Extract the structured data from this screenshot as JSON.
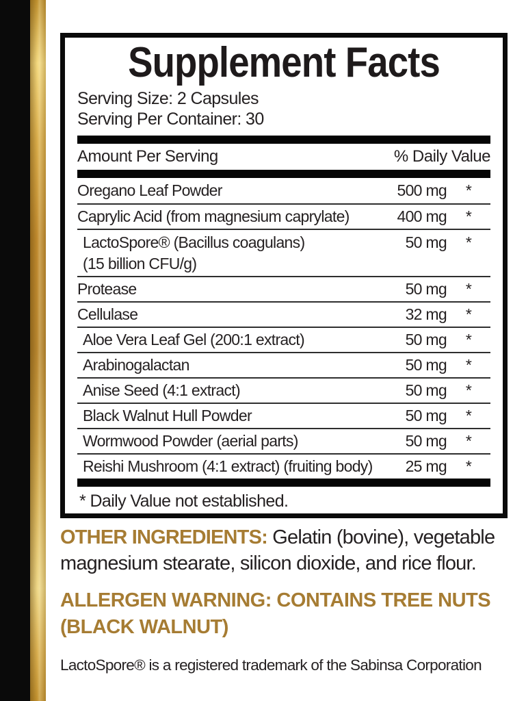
{
  "colors": {
    "accent_gold_text": "#A67C33",
    "stripe_gold_light": "#F3D87E",
    "stripe_gold_dark": "#8A661A",
    "bar_black": "#0A0A0A",
    "text_black": "#252122"
  },
  "panel": {
    "title": "Supplement Facts",
    "serving_size": "Serving Size: 2 Capsules",
    "serving_per_container": "Serving Per Container: 30",
    "columns": {
      "amount_header": "Amount Per Serving",
      "daily_value_header": "% Daily Value"
    },
    "rows": [
      {
        "name": "Oregano Leaf Powder",
        "amount": "500 mg",
        "dv": "*"
      },
      {
        "name": "Caprylic Acid (from magnesium caprylate)",
        "amount": "400 mg",
        "dv": "*"
      },
      {
        "name": "LactoSpore® (Bacillus coagulans)",
        "name2": "(15 billion CFU/g)",
        "amount": "50 mg",
        "dv": "*"
      },
      {
        "name": "Protease",
        "amount": "50 mg",
        "dv": "*"
      },
      {
        "name": "Cellulase",
        "amount": "32 mg",
        "dv": "*"
      },
      {
        "name": "Aloe Vera Leaf Gel (200:1 extract)",
        "amount": "50 mg",
        "dv": "*"
      },
      {
        "name": "Arabinogalactan",
        "amount": "50 mg",
        "dv": "*"
      },
      {
        "name": "Anise Seed (4:1 extract)",
        "amount": "50 mg",
        "dv": "*"
      },
      {
        "name": "Black Walnut Hull Powder",
        "amount": "50 mg",
        "dv": "*"
      },
      {
        "name": "Wormwood Powder (aerial parts)",
        "amount": "50 mg",
        "dv": "*"
      },
      {
        "name": "Reishi Mushroom (4:1 extract) (fruiting body)",
        "amount": "25 mg",
        "dv": "*"
      }
    ],
    "footnote": "* Daily Value not established."
  },
  "other_ingredients": {
    "label": "OTHER INGREDIENTS:",
    "line1_rest": " Gelatin (bovine), vegetable",
    "line2": "magnesium stearate, silicon dioxide, and rice flour."
  },
  "allergen_warning": {
    "line1": "ALLERGEN WARNING: CONTAINS TREE NUTS",
    "line2": "(BLACK WALNUT)"
  },
  "trademark_note": "LactoSpore® is a registered trademark of the Sabinsa Corporation"
}
